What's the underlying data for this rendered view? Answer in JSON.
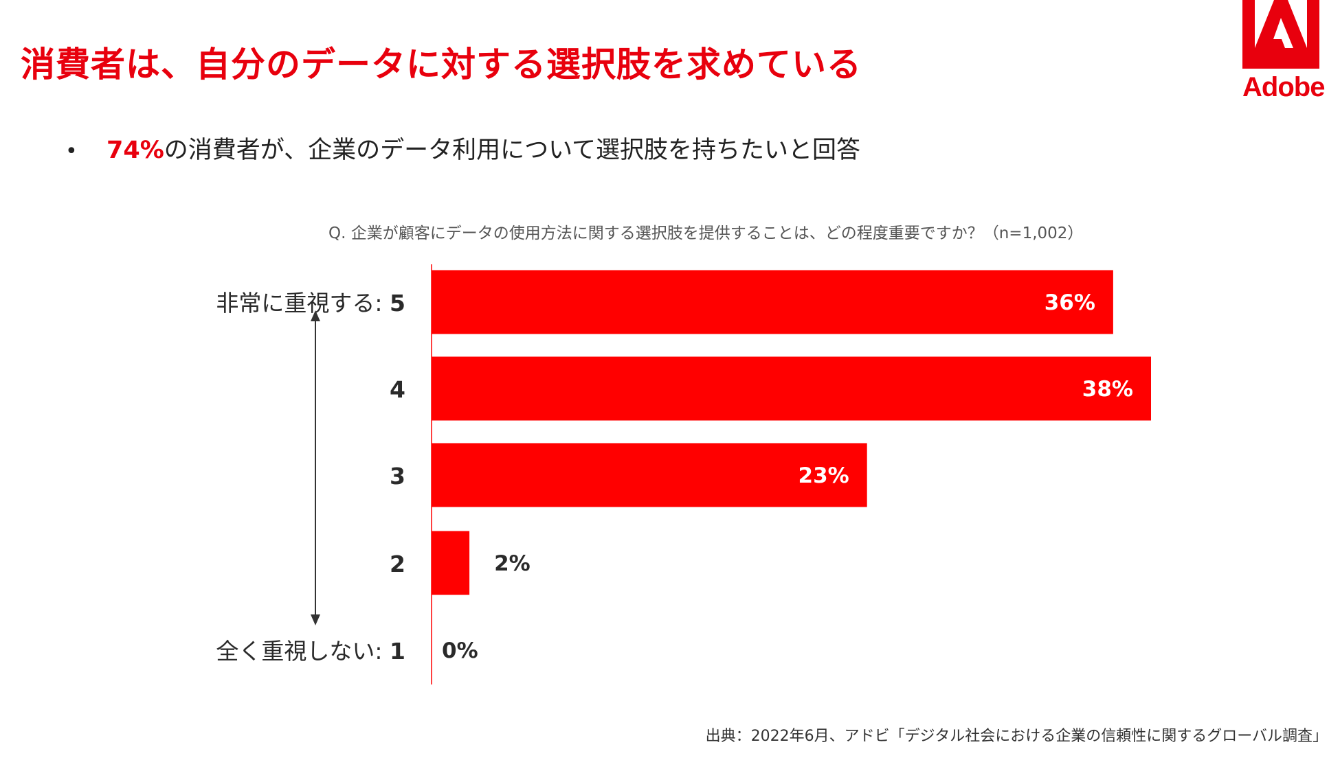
{
  "header": {
    "title": "消費者は、自分のデータに対する選択肢を求めている"
  },
  "logo": {
    "text": "Adobe",
    "color": "#e8000d"
  },
  "bullet": {
    "symbol": "•",
    "highlight": "74%",
    "text": "の消費者が、企業のデータ利用について選択肢を持ちたいと回答"
  },
  "question": "Q. 企業が顧客にデータの使用方法に関する選択肢を提供することは、どの程度重要ですか？（n=1,002）",
  "chart_data": {
    "type": "bar",
    "orientation": "horizontal",
    "categories": [
      "非常に重視する: 5",
      "4",
      "3",
      "2",
      "全く重視しない: 1"
    ],
    "values": [
      36,
      38,
      23,
      2,
      0
    ],
    "value_labels": [
      "36%",
      "38%",
      "23%",
      "2%",
      "0%"
    ],
    "xlim": [
      0,
      40
    ],
    "bar_color": "#ff0000",
    "grid": false
  },
  "source": "出典：2022年6月、アドビ「デジタル社会における企業の信頼性に関するグローバル調査」"
}
